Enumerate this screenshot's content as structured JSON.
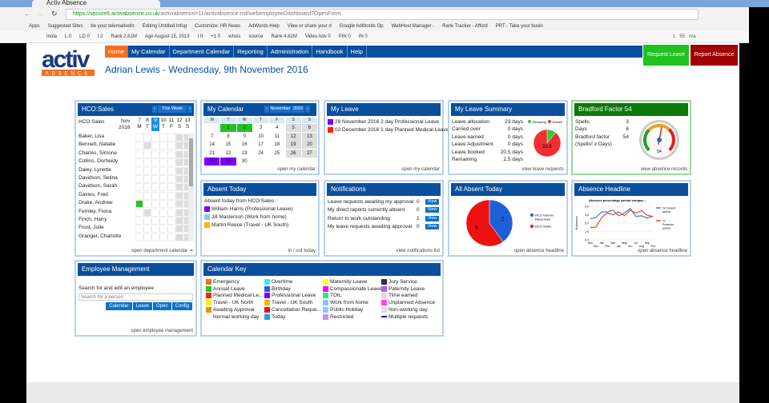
{
  "browser": {
    "tab_title": "Activ Absence",
    "url_secure": "https://secure5.activabsence.co.uk",
    "url_path": "/activ/absence/r11/activabsence.nsf/webemployeeDashboard?OpenForm",
    "bookmarks": [
      "Apps",
      "Suggested Sites",
      "be your telemarketin",
      "Editing Untitled Infog",
      "Customize: HR News",
      "AdWords Help",
      "View or share your d",
      "Google AdWords Op",
      "WebHost Manager -",
      "Rank Tracker - Afford",
      "PRT - Take your busin"
    ],
    "extension_items": [
      "Inola",
      "L 0",
      "LD 0",
      "I 2",
      "Rank 2.81M",
      "Age August 15, 2013",
      "I 0",
      "+1 0",
      "whois",
      "source",
      "Rank 4.82M",
      "Video Adv 0",
      "PIN 0",
      "IN 0"
    ],
    "extension_right": [
      "1",
      "55",
      "n/a"
    ]
  },
  "logo": {
    "text": "activ",
    "sub": "ABSENCE"
  },
  "nav": [
    "Home",
    "My Calendar",
    "Department Calendar",
    "Reporting",
    "Administration",
    "Handbook",
    "Help"
  ],
  "buttons": {
    "request": "Request Leave",
    "report": "Report Absence"
  },
  "title": "Adrian Lewis - Wednesday, 9th November 2016",
  "hco": {
    "title": "HCO:Sales",
    "week": "This Week",
    "label": "HCO:Sales",
    "month": "Nov",
    "year": "2016",
    "days": [
      "7",
      "8",
      "9",
      "10",
      "11",
      "12",
      "13"
    ],
    "dows": [
      "M",
      "T",
      "W",
      "T",
      "F",
      "S",
      "S"
    ],
    "names": [
      "Baker, Lisa",
      "Bennett, Natalie",
      "Charles, Simone",
      "Collins, Dorheidy",
      "Daley, Lynette",
      "Davidson, Selina",
      "Davidson, Sarah",
      "Davies, Fred",
      "Drake, Andrew",
      "Fernley, Fiona",
      "Finch, Harry",
      "Frost, Julie",
      "Granger, Charlotte"
    ],
    "footer": "open department calendar"
  },
  "mycal": {
    "title": "My Calendar",
    "month": "November",
    "year": "2016",
    "dows": [
      "M",
      "T",
      "W",
      "T",
      "F",
      "S",
      "S"
    ],
    "weeks": [
      [
        "",
        "1",
        "2",
        "3",
        "4",
        "5",
        "6"
      ],
      [
        "7",
        "8",
        "9",
        "10",
        "11",
        "12",
        "13"
      ],
      [
        "14",
        "15",
        "16",
        "17",
        "18",
        "19",
        "20"
      ],
      [
        "21",
        "22",
        "23",
        "24",
        "25",
        "26",
        "27"
      ],
      [
        "28",
        "29",
        "30",
        "",
        "",
        "",
        ""
      ]
    ],
    "footer": "open my calendar"
  },
  "myleave": {
    "title": "My Leave",
    "items": [
      {
        "text": "28 November 2016 2 day Professional Leave",
        "color": "#7b00ff"
      },
      {
        "text": "02 December 2016 1 day Planned Medical Leave",
        "color": "#ff2200"
      }
    ],
    "footer": "open my calendar"
  },
  "summary": {
    "title": "My Leave Summary",
    "rows": [
      [
        "Leave allocation",
        "23 days"
      ],
      [
        "Carried over",
        "0 days"
      ],
      [
        "Leave earned",
        "0 days"
      ],
      [
        "Leave Adjustment",
        "0 days"
      ],
      [
        "Leave booked",
        "20.5 days"
      ],
      [
        "Remaining",
        "2.5 days"
      ]
    ],
    "legend": [
      "Remaining",
      "Booked"
    ],
    "pie_label": "20.5",
    "footer": "view leave requests",
    "chart_data": {
      "type": "pie",
      "categories": [
        "Remaining",
        "Booked"
      ],
      "values": [
        2.5,
        20.5
      ],
      "colors": [
        "#2ecc2e",
        "#f03030"
      ]
    }
  },
  "bradford": {
    "title": "Bradford Factor 54",
    "rows": [
      [
        "Spells",
        "3"
      ],
      [
        "Days",
        "6"
      ],
      [
        "Bradford factor",
        "54"
      ]
    ],
    "formula": "(Spells² x Days)",
    "gauge_value": 54,
    "footer": "view absence records"
  },
  "absent": {
    "title": "Absent Today",
    "intro": "Absent today from HCO:Sales :",
    "items": [
      {
        "text": "William Harris (Professional Leave)",
        "color": "#7b00ff"
      },
      {
        "text": "Jill Masterson (Work from home)",
        "color": "#8fc4f4"
      },
      {
        "text": "Martin Reece (Travel - UK South)",
        "color": "#ffb300"
      }
    ],
    "footer": "in / out today"
  },
  "notif": {
    "title": "Notifications",
    "rows": [
      [
        "Leave requests awaiting my approval",
        "0"
      ],
      [
        "My direct reports currently absent",
        "0"
      ],
      [
        "Return to work outstanding",
        "1"
      ],
      [
        "My leave requests awaiting approval",
        "0"
      ]
    ],
    "view": "View",
    "footer": "view notifications list"
  },
  "allabsent": {
    "title": "All Absent Today",
    "footer": "open absence headline",
    "chart_data": {
      "type": "pie",
      "categories": [
        "HCO Human Resources",
        "HCO Sales"
      ],
      "values": [
        2,
        3
      ],
      "colors": [
        "#1f5fd6",
        "#ee1111"
      ]
    }
  },
  "headline": {
    "title": "Absence Headline",
    "footer": "open absence headline",
    "chart_data": {
      "type": "line",
      "title": "Absence percentage period compar...",
      "ylabel": "% Absence",
      "ylim": [
        0,
        6
      ],
      "yticks": [
        "0.0",
        "1.5",
        "3.0",
        "4.5",
        "6.0"
      ],
      "x": [
        "Nov",
        "Dec",
        "Jan",
        "Feb",
        "Mar",
        "Apr",
        "May",
        "Jun",
        "Jul",
        "Aug",
        "Sep",
        "Oct"
      ],
      "series": [
        {
          "name": "% Current period",
          "color": "#3a7fe0",
          "values": [
            3.8,
            4.0,
            5.0,
            5.0,
            5.3,
            4.3,
            4.8,
            5.6,
            4.2,
            4.3,
            3.9,
            4.2
          ]
        },
        {
          "name": "% Previous period",
          "color": "#f04a10",
          "values": [
            2.2,
            2.3,
            4.0,
            4.8,
            4.5,
            5.0,
            4.3,
            5.3,
            4.8,
            5.2,
            4.4,
            4.2
          ]
        }
      ]
    }
  },
  "emp": {
    "title": "Employee Management",
    "label": "Search for and edit an employee",
    "placeholder": "Search for a person",
    "buttons": [
      "Calendar",
      "Leave",
      "Open",
      "Config"
    ],
    "footer": "open employee management"
  },
  "key": {
    "title": "Calendar Key",
    "items": [
      [
        "Emergency",
        "#f36f21"
      ],
      [
        "Annual Leave",
        "#22c322"
      ],
      [
        "Planned Medical Le...",
        "#ff2200"
      ],
      [
        "Travel - UK North",
        "#ffee00"
      ],
      [
        "Awaiting Approval",
        "#f09000"
      ],
      [
        "Normal working day",
        ""
      ],
      [
        "Overtime",
        "#33f0f0"
      ],
      [
        "Birthday",
        "#3355ee"
      ],
      [
        "Professional Leave",
        "#7b00ff"
      ],
      [
        "Travel - UK South",
        "#ffb300"
      ],
      [
        "Cancellation Reque...",
        "#ee1111"
      ],
      [
        "Today",
        "#20a0e8"
      ],
      [
        "Maternity Leave",
        "#ffff22"
      ],
      [
        "Compassionate Leave",
        "#ff00ff"
      ],
      [
        "TOIL",
        "#22ee88"
      ],
      [
        "Work from home",
        "#8fc4f4"
      ],
      [
        "Public Holiday",
        "#88ccff"
      ],
      [
        "Restricted",
        "#c890f0"
      ],
      [
        "Jury Service",
        "#333333"
      ],
      [
        "Paternity Leave",
        "#b060f0"
      ],
      [
        "Time earned",
        "#f8c8f0"
      ],
      [
        "Unplanned Absence",
        "#ff44ee"
      ],
      [
        "Non-working day",
        "#dddddd"
      ],
      [
        "Multiple requests",
        "#1010cc"
      ]
    ]
  }
}
